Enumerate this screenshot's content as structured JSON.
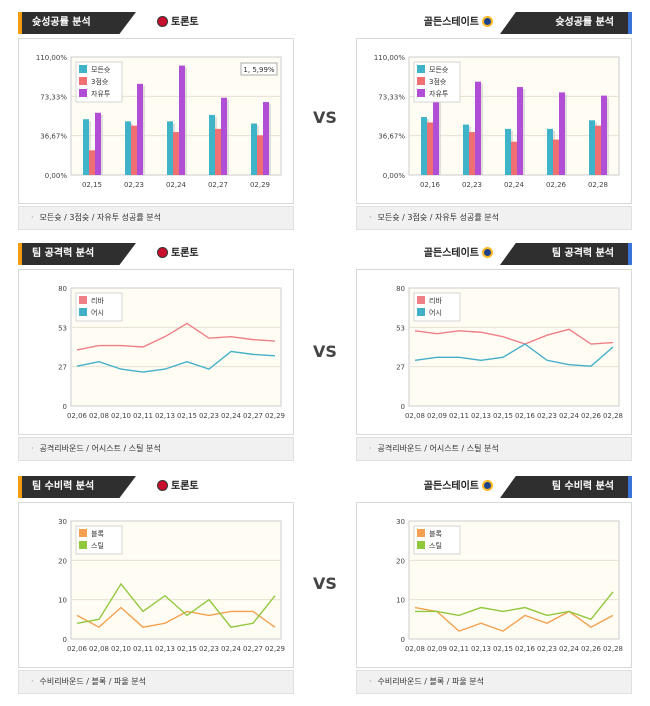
{
  "vs_label": "VS",
  "panels": [
    {
      "id": "p1",
      "title": "슛성공률 분석",
      "team": "토론토",
      "side": "left",
      "footer": "모든슛 / 3점슛 / 자유투 성공률 분석",
      "chart_data": {
        "type": "bar",
        "yticks": [
          "110,00%",
          "73,33%",
          "36,67%",
          "0,00%"
        ],
        "ylim": [
          0,
          110
        ],
        "categories": [
          "02,15",
          "02,23",
          "02,24",
          "02,27",
          "02,29"
        ],
        "tooltip": "1, 5,99%",
        "series": [
          {
            "name": "모든슛",
            "color": "#3fb3c7",
            "values": [
              52,
              50,
              50,
              56,
              48
            ]
          },
          {
            "name": "3점슛",
            "color": "#f06f72",
            "values": [
              23,
              46,
              40,
              43,
              37
            ]
          },
          {
            "name": "자유투",
            "color": "#b04fd6",
            "values": [
              58,
              85,
              102,
              72,
              68
            ]
          }
        ]
      }
    },
    {
      "id": "p2",
      "title": "슛성공률 분석",
      "team": "골든스테이트",
      "side": "right",
      "footer": "모든슛 / 3점슛 / 자유투 성공률 분석",
      "chart_data": {
        "type": "bar",
        "yticks": [
          "110,00%",
          "73,33%",
          "36,67%",
          "0,00%"
        ],
        "ylim": [
          0,
          110
        ],
        "categories": [
          "02,16",
          "02,23",
          "02,24",
          "02,26",
          "02,28"
        ],
        "series": [
          {
            "name": "모든슛",
            "color": "#3fb3c7",
            "values": [
              54,
              47,
              43,
              43,
              51
            ]
          },
          {
            "name": "3점슛",
            "color": "#f06f72",
            "values": [
              49,
              40,
              31,
              33,
              46
            ]
          },
          {
            "name": "자유투",
            "color": "#b04fd6",
            "values": [
              80,
              87,
              82,
              77,
              74
            ]
          }
        ]
      }
    },
    {
      "id": "p3",
      "title": "팀 공격력 분석",
      "team": "토론토",
      "side": "left",
      "footer": "공격리바운드 / 어시스트 / 스틸 분석",
      "chart_data": {
        "type": "line",
        "yticks": [
          "80",
          "53",
          "27",
          "0"
        ],
        "ylim": [
          0,
          80
        ],
        "categories": [
          "02,06",
          "02,08",
          "02,10",
          "02,11",
          "02,13",
          "02,15",
          "02,23",
          "02,24",
          "02,27",
          "02,29"
        ],
        "series": [
          {
            "name": "리바",
            "color": "#ef7f86",
            "values": [
              38,
              41,
              41,
              40,
              47,
              56,
              46,
              47,
              45,
              44
            ]
          },
          {
            "name": "어시",
            "color": "#43afc8",
            "values": [
              27,
              30,
              25,
              23,
              25,
              30,
              25,
              37,
              35,
              34
            ]
          }
        ]
      }
    },
    {
      "id": "p4",
      "title": "팀 공격력 분석",
      "team": "골든스테이트",
      "side": "right",
      "footer": "공격리바운드 / 어시스트 / 스틸 분석",
      "chart_data": {
        "type": "line",
        "yticks": [
          "80",
          "53",
          "27",
          "0"
        ],
        "ylim": [
          0,
          80
        ],
        "categories": [
          "02,08",
          "02,09",
          "02,11",
          "02,13",
          "02,15",
          "02,16",
          "02,23",
          "02,24",
          "02,26",
          "02,28"
        ],
        "series": [
          {
            "name": "리바",
            "color": "#ef7f86",
            "values": [
              51,
              49,
              51,
              50,
              47,
              42,
              48,
              52,
              42,
              43
            ]
          },
          {
            "name": "어시",
            "color": "#43afc8",
            "values": [
              31,
              33,
              33,
              31,
              33,
              42,
              31,
              28,
              27,
              40
            ]
          }
        ]
      }
    },
    {
      "id": "p5",
      "title": "팀 수비력 분석",
      "team": "토론토",
      "side": "left",
      "footer": "수비리바운드 / 블록 / 파울 분석",
      "chart_data": {
        "type": "line",
        "yticks": [
          "30",
          "20",
          "10",
          "0"
        ],
        "ylim": [
          0,
          30
        ],
        "categories": [
          "02,06",
          "02,08",
          "02,10",
          "02,11",
          "02,13",
          "02,15",
          "02,23",
          "02,24",
          "02,27",
          "02,29"
        ],
        "series": [
          {
            "name": "블록",
            "color": "#f3a04f",
            "values": [
              6,
              3,
              8,
              3,
              4,
              7,
              6,
              7,
              7,
              3
            ]
          },
          {
            "name": "스틸",
            "color": "#92c83e",
            "values": [
              4,
              5,
              14,
              7,
              11,
              6,
              10,
              3,
              4,
              11
            ]
          }
        ]
      }
    },
    {
      "id": "p6",
      "title": "팀 수비력 분석",
      "team": "골든스테이트",
      "side": "right",
      "footer": "수비리바운드 / 블록 / 파울 분석",
      "chart_data": {
        "type": "line",
        "yticks": [
          "30",
          "20",
          "10",
          "0"
        ],
        "ylim": [
          0,
          30
        ],
        "categories": [
          "02,08",
          "02,09",
          "02,11",
          "02,13",
          "02,15",
          "02,16",
          "02,23",
          "02,24",
          "02,26",
          "02,28"
        ],
        "series": [
          {
            "name": "블록",
            "color": "#f3a04f",
            "values": [
              8,
              7,
              2,
              4,
              2,
              6,
              4,
              7,
              3,
              6
            ]
          },
          {
            "name": "스틸",
            "color": "#92c83e",
            "values": [
              7,
              7,
              6,
              8,
              7,
              8,
              6,
              7,
              5,
              12
            ]
          }
        ]
      }
    }
  ]
}
